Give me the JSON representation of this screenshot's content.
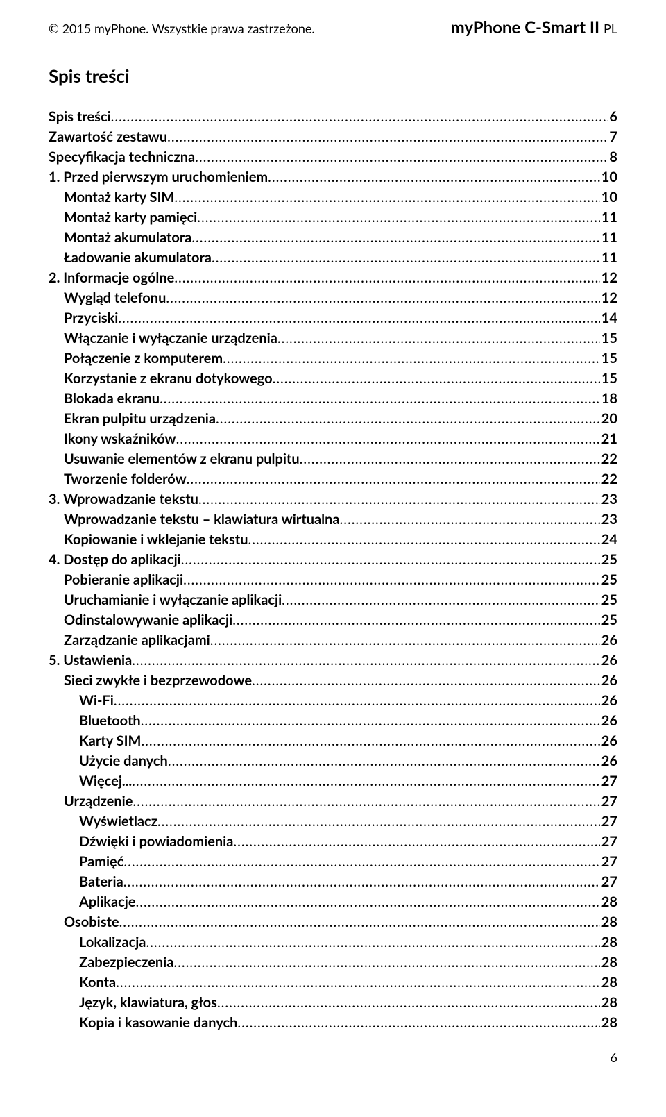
{
  "header": {
    "copyright": "© 2015 myPhone. Wszystkie prawa zastrzeżone.",
    "product_main": "myPhone C-Smart II ",
    "product_suffix": "PL"
  },
  "toc_title": "Spis treści",
  "page_number": "6",
  "toc": [
    {
      "label": "Spis treści",
      "page": "6",
      "bold": true,
      "indent": 0
    },
    {
      "label": "Zawartość zestawu",
      "page": "7",
      "bold": true,
      "indent": 0
    },
    {
      "label": "Specyfikacja techniczna",
      "page": "8",
      "bold": true,
      "indent": 0
    },
    {
      "label": "1. Przed pierwszym uruchomieniem",
      "page": "10",
      "bold": true,
      "indent": 0
    },
    {
      "label": "Montaż karty SIM",
      "page": "10",
      "bold": true,
      "indent": 1
    },
    {
      "label": "Montaż karty pamięci",
      "page": "11",
      "bold": true,
      "indent": 1
    },
    {
      "label": "Montaż akumulatora",
      "page": "11",
      "bold": true,
      "indent": 1
    },
    {
      "label": "Ładowanie akumulatora",
      "page": "11",
      "bold": true,
      "indent": 1
    },
    {
      "label": "2. Informacje ogólne",
      "page": "12",
      "bold": true,
      "indent": 0
    },
    {
      "label": "Wygląd telefonu",
      "page": "12",
      "bold": true,
      "indent": 1
    },
    {
      "label": "Przyciski",
      "page": "14",
      "bold": true,
      "indent": 1
    },
    {
      "label": "Włączanie i wyłączanie urządzenia",
      "page": "15",
      "bold": true,
      "indent": 1
    },
    {
      "label": "Połączenie z komputerem",
      "page": "15",
      "bold": true,
      "indent": 1
    },
    {
      "label": "Korzystanie z ekranu dotykowego",
      "page": "15",
      "bold": true,
      "indent": 1
    },
    {
      "label": "Blokada ekranu",
      "page": "18",
      "bold": true,
      "indent": 1
    },
    {
      "label": "Ekran pulpitu urządzenia",
      "page": "20",
      "bold": true,
      "indent": 1
    },
    {
      "label": "Ikony wskaźników",
      "page": "21",
      "bold": true,
      "indent": 1
    },
    {
      "label": "Usuwanie elementów z ekranu pulpitu",
      "page": "22",
      "bold": true,
      "indent": 1
    },
    {
      "label": "Tworzenie folderów",
      "page": "22",
      "bold": true,
      "indent": 1
    },
    {
      "label": "3. Wprowadzanie tekstu",
      "page": "23",
      "bold": true,
      "indent": 0
    },
    {
      "label": "Wprowadzanie tekstu – klawiatura wirtualna",
      "page": "23",
      "bold": true,
      "indent": 1
    },
    {
      "label": "Kopiowanie i wklejanie tekstu",
      "page": "24",
      "bold": true,
      "indent": 1
    },
    {
      "label": "4. Dostęp do aplikacji",
      "page": "25",
      "bold": true,
      "indent": 0
    },
    {
      "label": "Pobieranie aplikacji",
      "page": "25",
      "bold": true,
      "indent": 1
    },
    {
      "label": "Uruchamianie i wyłączanie aplikacji",
      "page": "25",
      "bold": true,
      "indent": 1
    },
    {
      "label": "Odinstalowywanie aplikacji",
      "page": "25",
      "bold": true,
      "indent": 1
    },
    {
      "label": "Zarządzanie aplikacjami",
      "page": "26",
      "bold": true,
      "indent": 1
    },
    {
      "label": "5. Ustawienia",
      "page": "26",
      "bold": true,
      "indent": 0
    },
    {
      "label": "Sieci zwykłe i bezprzewodowe",
      "page": "26",
      "bold": true,
      "indent": 1
    },
    {
      "label": "Wi-Fi",
      "page": "26",
      "bold": true,
      "indent": 2
    },
    {
      "label": "Bluetooth",
      "page": "26",
      "bold": true,
      "indent": 2
    },
    {
      "label": "Karty SIM",
      "page": "26",
      "bold": true,
      "indent": 2
    },
    {
      "label": "Użycie danych",
      "page": "26",
      "bold": true,
      "indent": 2
    },
    {
      "label": "Więcej...",
      "page": "27",
      "bold": true,
      "indent": 2
    },
    {
      "label": "Urządzenie",
      "page": "27",
      "bold": true,
      "indent": 1
    },
    {
      "label": "Wyświetlacz",
      "page": "27",
      "bold": true,
      "indent": 2
    },
    {
      "label": "Dźwięki i powiadomienia",
      "page": "27",
      "bold": true,
      "indent": 2
    },
    {
      "label": "Pamięć",
      "page": "27",
      "bold": true,
      "indent": 2
    },
    {
      "label": "Bateria",
      "page": "27",
      "bold": true,
      "indent": 2
    },
    {
      "label": "Aplikacje",
      "page": "28",
      "bold": true,
      "indent": 2
    },
    {
      "label": "Osobiste",
      "page": "28",
      "bold": true,
      "indent": 1
    },
    {
      "label": "Lokalizacja",
      "page": "28",
      "bold": true,
      "indent": 2
    },
    {
      "label": "Zabezpieczenia",
      "page": "28",
      "bold": true,
      "indent": 2
    },
    {
      "label": "Konta",
      "page": "28",
      "bold": true,
      "indent": 2
    },
    {
      "label": "Język, klawiatura, głos",
      "page": "28",
      "bold": true,
      "indent": 2
    },
    {
      "label": "Kopia i kasowanie danych",
      "page": "28",
      "bold": true,
      "indent": 2
    }
  ]
}
